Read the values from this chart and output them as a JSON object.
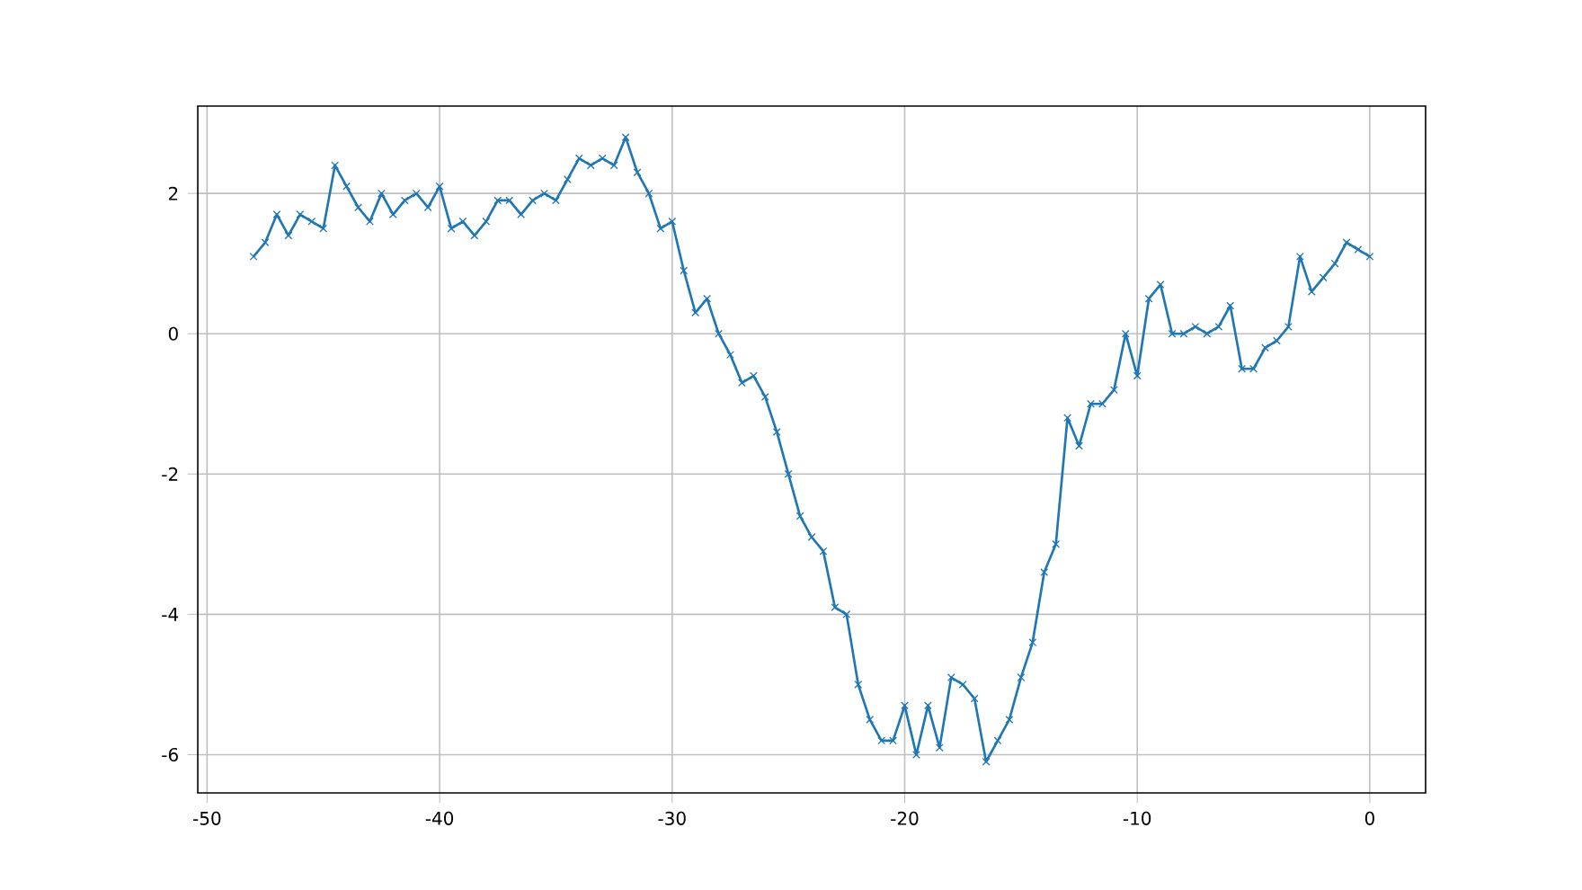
{
  "chart_data": {
    "type": "line",
    "x": [
      -48,
      -47.5,
      -47,
      -46.5,
      -46,
      -45.5,
      -45,
      -44.5,
      -44,
      -43.5,
      -43,
      -42.5,
      -42,
      -41.5,
      -41,
      -40.5,
      -40,
      -39.5,
      -39,
      -38.5,
      -38,
      -37.5,
      -37,
      -36.5,
      -36,
      -35.5,
      -35,
      -34.5,
      -34,
      -33.5,
      -33,
      -32.5,
      -32,
      -31.5,
      -31,
      -30.5,
      -30,
      -29.5,
      -29,
      -28.5,
      -28,
      -27.5,
      -27,
      -26.5,
      -26,
      -25.5,
      -25,
      -24.5,
      -24,
      -23.5,
      -23,
      -22.5,
      -22,
      -21.5,
      -21,
      -20.5,
      -20,
      -19.5,
      -19,
      -18.5,
      -18,
      -17.5,
      -17,
      -16.5,
      -16,
      -15.5,
      -15,
      -14.5,
      -14,
      -13.5,
      -13,
      -12.5,
      -12,
      -11.5,
      -11,
      -10.5,
      -10,
      -9.5,
      -9,
      -8.5,
      -8,
      -7.5,
      -7,
      -6.5,
      -6,
      -5.5,
      -5,
      -4.5,
      -4,
      -3.5,
      -3,
      -2.5,
      -2,
      -1.5,
      -1,
      -0.5,
      0
    ],
    "series": [
      {
        "color": "#1f77b4",
        "values": [
          1.1,
          1.3,
          1.7,
          1.4,
          1.7,
          1.6,
          1.5,
          2.4,
          2.1,
          1.8,
          1.6,
          2.0,
          1.7,
          1.9,
          2.0,
          1.8,
          2.1,
          1.5,
          1.6,
          1.4,
          1.6,
          1.9,
          1.9,
          1.7,
          1.9,
          2.0,
          1.9,
          2.2,
          2.5,
          2.4,
          2.5,
          2.4,
          2.8,
          2.3,
          2.0,
          1.5,
          1.6,
          0.9,
          0.3,
          0.5,
          0.0,
          -0.3,
          -0.7,
          -0.6,
          -0.9,
          -1.4,
          -2.0,
          -2.6,
          -2.9,
          -3.1,
          -3.9,
          -4.0,
          -5.0,
          -5.5,
          -5.8,
          -5.8,
          -5.3,
          -6.0,
          -5.3,
          -5.9,
          -4.9,
          -5.0,
          -5.2,
          -6.1,
          -5.8,
          -5.5,
          -4.9,
          -4.4,
          -3.4,
          -3.0,
          -1.2,
          -1.6,
          -1.0,
          -1.0,
          -0.8,
          0.0,
          -0.6,
          0.5,
          0.7,
          0.0,
          0.0,
          0.1,
          0.0,
          0.1,
          0.4,
          -0.5,
          -0.5,
          -0.2,
          -0.1,
          0.1,
          1.1,
          0.6,
          0.8,
          1.0,
          1.3,
          1.2,
          1.1
        ]
      }
    ],
    "xlim": [
      -50.4,
      2.4
    ],
    "ylim": [
      -6.545,
      3.245
    ],
    "xticks": [
      -50,
      -40,
      -30,
      -20,
      -10,
      0
    ],
    "yticks": [
      -6,
      -4,
      -2,
      0,
      2
    ],
    "grid": true,
    "marker": "cross",
    "line_style": "solid"
  }
}
